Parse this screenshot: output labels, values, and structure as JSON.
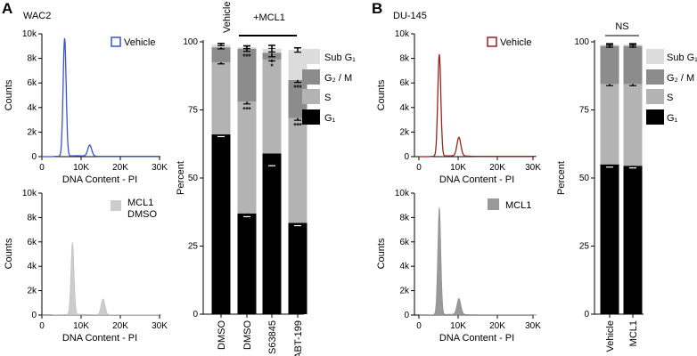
{
  "panels": {
    "A": {
      "letter": "A",
      "cell_line": "WAC2",
      "histograms": [
        {
          "legend": [
            "Vehicle"
          ],
          "xlabel": "DNA Content - PI",
          "ylabel": "Counts",
          "xticks": [
            "0",
            "10K",
            "20K",
            "30K"
          ],
          "yticks": [
            "0",
            "2k",
            "4k",
            "6k",
            "8k",
            "10k"
          ],
          "outline_color": "#3a52d6",
          "peaks": [
            {
              "x_k": 5.8,
              "height_k": 9.6
            },
            {
              "x_k": 12.2,
              "height_k": 0.9
            }
          ]
        },
        {
          "legend": [
            "MCL1",
            "DMSO"
          ],
          "xlabel": "DNA Content - PI",
          "ylabel": "Counts",
          "xticks": [
            "0",
            "10K",
            "20K",
            "30K"
          ],
          "yticks": [
            "0",
            "2k",
            "4k",
            "6k",
            "8k",
            "10k"
          ],
          "fill_color": "#cccccc",
          "peaks": [
            {
              "x_k": 7.8,
              "height_k": 5.9
            },
            {
              "x_k": 15.6,
              "height_k": 1.3
            }
          ]
        }
      ],
      "bar_chart": {
        "ylabel": "Percent",
        "yticks": [
          "0",
          "25",
          "50",
          "75",
          "100"
        ],
        "top_label_vehicle": "Vehicle",
        "top_label_mcl1": "+MCL1",
        "legend": [
          "Sub G₁",
          "G₂ / M",
          "S",
          "G₁"
        ]
      }
    },
    "B": {
      "letter": "B",
      "cell_line": "DU-145",
      "histograms": [
        {
          "legend": [
            "Vehicle"
          ],
          "xlabel": "DNA Content - PI",
          "ylabel": "Counts",
          "xticks": [
            "0",
            "10K",
            "20K",
            "30K"
          ],
          "yticks": [
            "0",
            "2k",
            "4k",
            "6k",
            "8k",
            "10k"
          ],
          "outline_color": "#9b2323",
          "peaks": [
            {
              "x_k": 5.2,
              "height_k": 8.3
            },
            {
              "x_k": 10.2,
              "height_k": 1.5
            }
          ]
        },
        {
          "legend": [
            "MCL1"
          ],
          "xlabel": "DNA Content - PI",
          "ylabel": "Counts",
          "xticks": [
            "0",
            "10K",
            "20K",
            "30K"
          ],
          "yticks": [
            "0",
            "2k",
            "4k",
            "6k",
            "8k",
            "10k"
          ],
          "fill_color": "#999999",
          "peaks": [
            {
              "x_k": 5.2,
              "height_k": 8.8
            },
            {
              "x_k": 10.2,
              "height_k": 1.3
            }
          ]
        }
      ],
      "bar_chart": {
        "ylabel": "Percent",
        "yticks": [
          "0",
          "25",
          "50",
          "75",
          "100"
        ],
        "top_label": "NS",
        "legend": [
          "Sub G₁",
          "G₂ / M",
          "S",
          "G₁"
        ]
      }
    }
  },
  "colors": {
    "sub_g1": "#dcdcdc",
    "g2m": "#8c8c8c",
    "s": "#b3b3b3",
    "g1": "#000000"
  },
  "chart_data": [
    {
      "type": "bar",
      "stacked": true,
      "categories": [
        "DMSO",
        "DMSO",
        "S63845",
        "ABT-199"
      ],
      "ylabel": "Percent",
      "ylim": [
        0,
        100
      ],
      "series": [
        {
          "name": "G₁",
          "values": [
            66,
            37,
            59,
            33.5
          ],
          "errors": [
            0.8,
            1.2,
            4.5,
            1.0
          ],
          "sig": [
            "",
            "***",
            "*",
            "***"
          ]
        },
        {
          "name": "S",
          "values": [
            26.5,
            41,
            34.5,
            38.5
          ],
          "errors": [
            0.6,
            0.8,
            0.5,
            0.8
          ],
          "sig": [
            "",
            "***",
            "*",
            "***"
          ]
        },
        {
          "name": "G₂ / M",
          "values": [
            5.5,
            19.5,
            2.5,
            14
          ],
          "errors": [
            0.6,
            1.0,
            1.5,
            0.9
          ],
          "sig": [
            "",
            "***",
            "*",
            "***"
          ]
        },
        {
          "name": "Sub G₁",
          "values": [
            1,
            0.5,
            1.5,
            11
          ],
          "errors": [
            0.4,
            0.5,
            1.2,
            0.8
          ],
          "sig": [
            "",
            "",
            "",
            ""
          ]
        }
      ]
    },
    {
      "type": "bar",
      "stacked": true,
      "categories": [
        "Vehicle",
        "MCL1"
      ],
      "ylabel": "Percent",
      "ylim": [
        0,
        100
      ],
      "series": [
        {
          "name": "G₁",
          "values": [
            55,
            54.5
          ],
          "errors": [
            1.0,
            0.8
          ]
        },
        {
          "name": "S",
          "values": [
            29.5,
            30
          ],
          "errors": [
            0.6,
            0.6
          ]
        },
        {
          "name": "G₂ / M",
          "values": [
            14,
            14
          ],
          "errors": [
            0.5,
            0.5
          ]
        },
        {
          "name": "Sub G₁",
          "values": [
            0.5,
            0.5
          ],
          "errors": [
            0.3,
            0.3
          ]
        }
      ]
    }
  ]
}
